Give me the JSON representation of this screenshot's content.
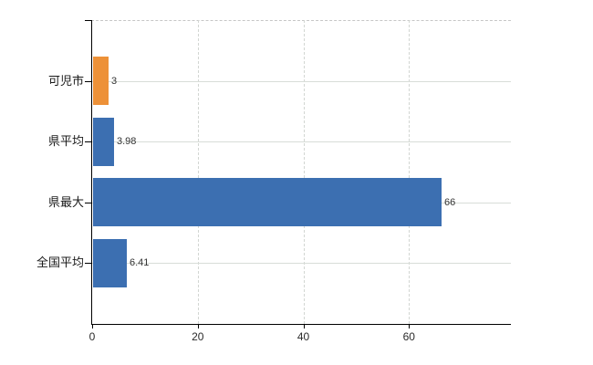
{
  "chart_data": {
    "type": "bar",
    "orientation": "horizontal",
    "title": "",
    "xlabel": "",
    "ylabel": "",
    "categories": [
      "可児市",
      "県平均",
      "県最大",
      "全国平均"
    ],
    "values": [
      3,
      3.98,
      66,
      6.41
    ],
    "value_labels": [
      "3",
      "3.98",
      "66",
      "6.41"
    ],
    "bar_colors": [
      "#ED9138",
      "#3C6FB1",
      "#3C6FB1",
      "#3C6FB1"
    ],
    "x_ticks": [
      0,
      20,
      40,
      60
    ],
    "x_tick_labels": [
      "0",
      "20",
      "40",
      "60"
    ],
    "xlim": [
      0,
      79.3
    ],
    "grid": {
      "vertical": "dashed",
      "horizontal": "solid",
      "top_border": "dashed"
    },
    "legend_position": "none",
    "colors": {
      "bar_blue": "#3C6FB1",
      "bar_orange": "#ED9138",
      "grid_solid": "#d8ddd8",
      "grid_dashed": "#d2d6d2",
      "axis": "#000000",
      "text": "#1a1a1a"
    }
  }
}
